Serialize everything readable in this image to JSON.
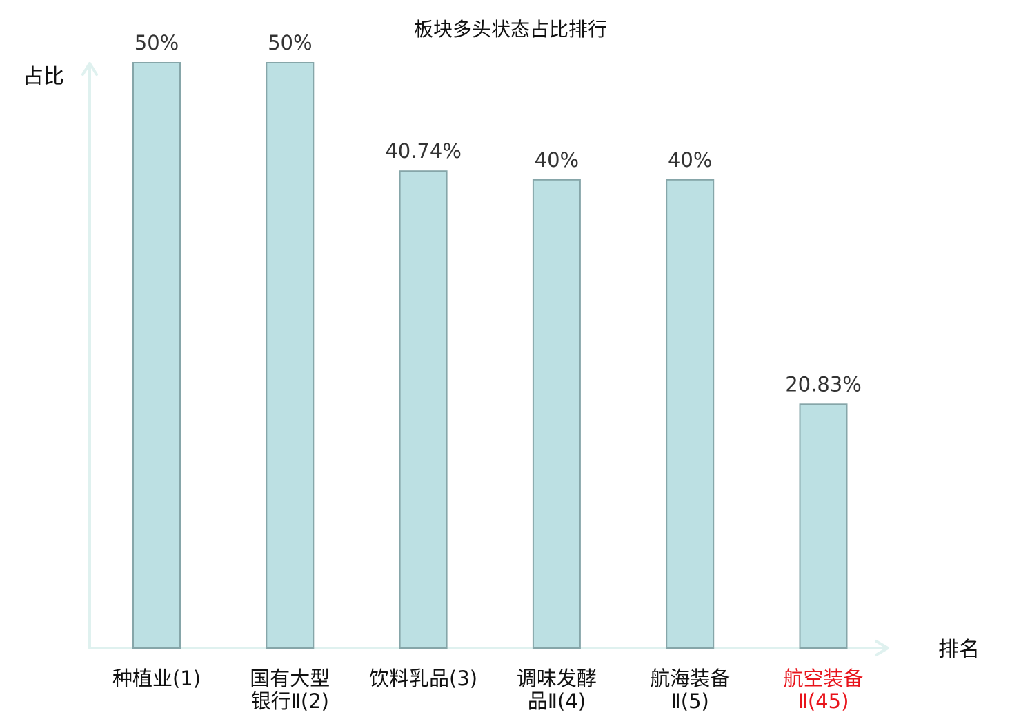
{
  "chart_data": {
    "type": "bar",
    "title": "板块多头状态占比排行",
    "xlabel": "排名",
    "ylabel": "占比",
    "ylim": [
      0,
      50
    ],
    "grid": false,
    "categories": [
      [
        "种植业(1)"
      ],
      [
        "国有大型",
        "银行Ⅱ(2)"
      ],
      [
        "饮料乳品(3)"
      ],
      [
        "调味发酵",
        "品Ⅱ(4)"
      ],
      [
        "航海装备",
        "Ⅱ(5)"
      ],
      [
        "航空装备",
        "Ⅱ(45)"
      ]
    ],
    "values": [
      50,
      50,
      40.74,
      40,
      40,
      20.83
    ],
    "value_labels": [
      "50%",
      "50%",
      "40.74%",
      "40%",
      "40%",
      "20.83%"
    ],
    "highlight_index": 5,
    "colors": {
      "bar_fill": "#bce0e3",
      "bar_stroke": "#86a6a9",
      "axis": "#dff1ef",
      "label": "#111111",
      "highlight_label": "#e8141b"
    }
  }
}
